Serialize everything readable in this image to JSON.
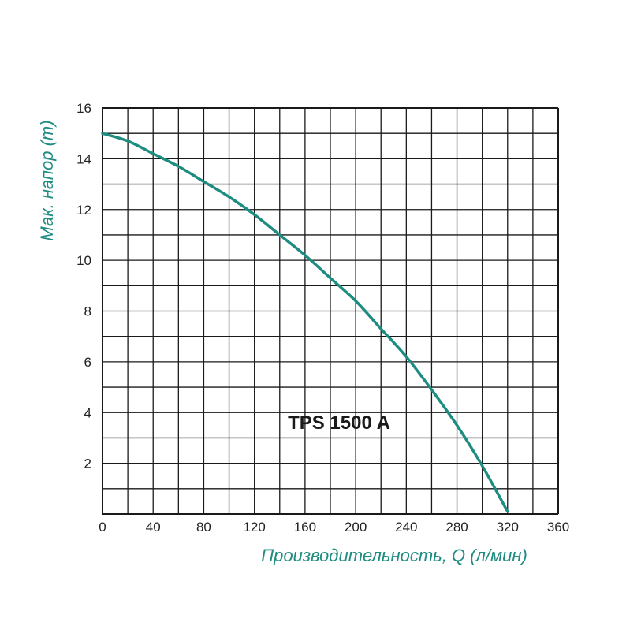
{
  "colors": {
    "curve": "#1e8c80",
    "axis_label": "#1e8c80",
    "grid": "#1a1a1a",
    "text": "#222222"
  },
  "chart_data": {
    "type": "line",
    "xlabel": "Производительность, Q (л/мин)",
    "ylabel": "Мак. напор (m)",
    "xlim": [
      0,
      360
    ],
    "ylim": [
      0,
      16
    ],
    "x_ticks": [
      0,
      40,
      80,
      120,
      160,
      200,
      240,
      280,
      320,
      360
    ],
    "y_ticks": [
      2,
      4,
      6,
      8,
      10,
      12,
      14,
      16
    ],
    "grid": true,
    "grid_x_step": 20,
    "grid_y_step": 1,
    "annotation": "TPS 1500 A",
    "series": [
      {
        "x": [
          0,
          20,
          40,
          60,
          80,
          100,
          120,
          140,
          160,
          180,
          200,
          220,
          240,
          260,
          280,
          300,
          320
        ],
        "y": [
          15.0,
          14.7,
          14.2,
          13.7,
          13.1,
          12.5,
          11.8,
          11.0,
          10.2,
          9.3,
          8.4,
          7.3,
          6.2,
          4.9,
          3.5,
          1.9,
          0.1
        ]
      }
    ]
  }
}
